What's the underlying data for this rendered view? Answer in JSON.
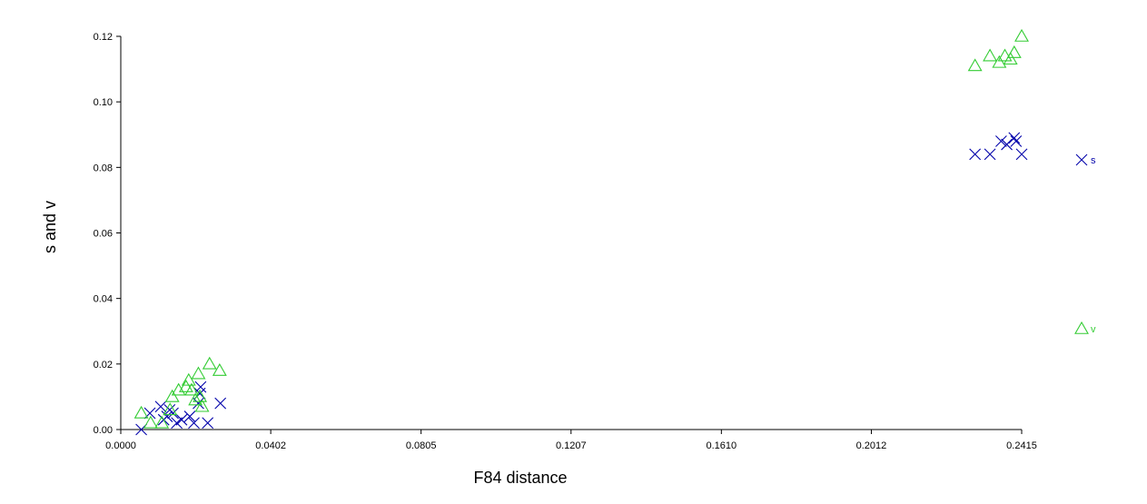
{
  "chart_data": {
    "type": "scatter",
    "xlabel": "F84 distance",
    "ylabel": "s and v",
    "xlim": [
      0,
      0.2415
    ],
    "ylim": [
      0,
      0.12
    ],
    "x_ticks": [
      0.0,
      0.0402,
      0.0805,
      0.1207,
      0.161,
      0.2012,
      0.2415
    ],
    "x_tick_labels": [
      "0.0000",
      "0.0402",
      "0.0805",
      "0.1207",
      "0.1610",
      "0.2012",
      "0.2415"
    ],
    "y_ticks": [
      0.0,
      0.02,
      0.04,
      0.06,
      0.08,
      0.1,
      0.12
    ],
    "y_tick_labels": [
      "0.00",
      "0.02",
      "0.04",
      "0.06",
      "0.08",
      "0.10",
      "0.12"
    ],
    "grid": false,
    "legend_position": "right",
    "series": [
      {
        "name": "s",
        "marker": "x",
        "color": "#0000aa",
        "points": [
          [
            0.0055,
            0.0
          ],
          [
            0.0078,
            0.005
          ],
          [
            0.0107,
            0.007
          ],
          [
            0.0124,
            0.004
          ],
          [
            0.0131,
            0.006
          ],
          [
            0.015,
            0.002
          ],
          [
            0.0163,
            0.003
          ],
          [
            0.0185,
            0.004
          ],
          [
            0.0196,
            0.002
          ],
          [
            0.0208,
            0.008
          ],
          [
            0.0212,
            0.011
          ],
          [
            0.0214,
            0.013
          ],
          [
            0.0233,
            0.002
          ],
          [
            0.0267,
            0.008
          ],
          [
            0.0115,
            0.003
          ],
          [
            0.014,
            0.005
          ],
          [
            0.229,
            0.084
          ],
          [
            0.233,
            0.084
          ],
          [
            0.236,
            0.088
          ],
          [
            0.2375,
            0.087
          ],
          [
            0.2395,
            0.089
          ],
          [
            0.24,
            0.088
          ],
          [
            0.2415,
            0.084
          ]
        ]
      },
      {
        "name": "v",
        "marker": "triangle",
        "color": "#33cc33",
        "points": [
          [
            0.0055,
            0.005
          ],
          [
            0.008,
            0.002
          ],
          [
            0.011,
            0.002
          ],
          [
            0.0132,
            0.006
          ],
          [
            0.0138,
            0.01
          ],
          [
            0.0155,
            0.012
          ],
          [
            0.0175,
            0.013
          ],
          [
            0.0182,
            0.015
          ],
          [
            0.019,
            0.012
          ],
          [
            0.0208,
            0.017
          ],
          [
            0.0212,
            0.01
          ],
          [
            0.0218,
            0.007
          ],
          [
            0.0238,
            0.02
          ],
          [
            0.0265,
            0.018
          ],
          [
            0.02,
            0.009
          ],
          [
            0.229,
            0.111
          ],
          [
            0.233,
            0.114
          ],
          [
            0.2355,
            0.112
          ],
          [
            0.237,
            0.114
          ],
          [
            0.2385,
            0.113
          ],
          [
            0.2395,
            0.115
          ],
          [
            0.2415,
            0.12
          ]
        ]
      }
    ]
  }
}
